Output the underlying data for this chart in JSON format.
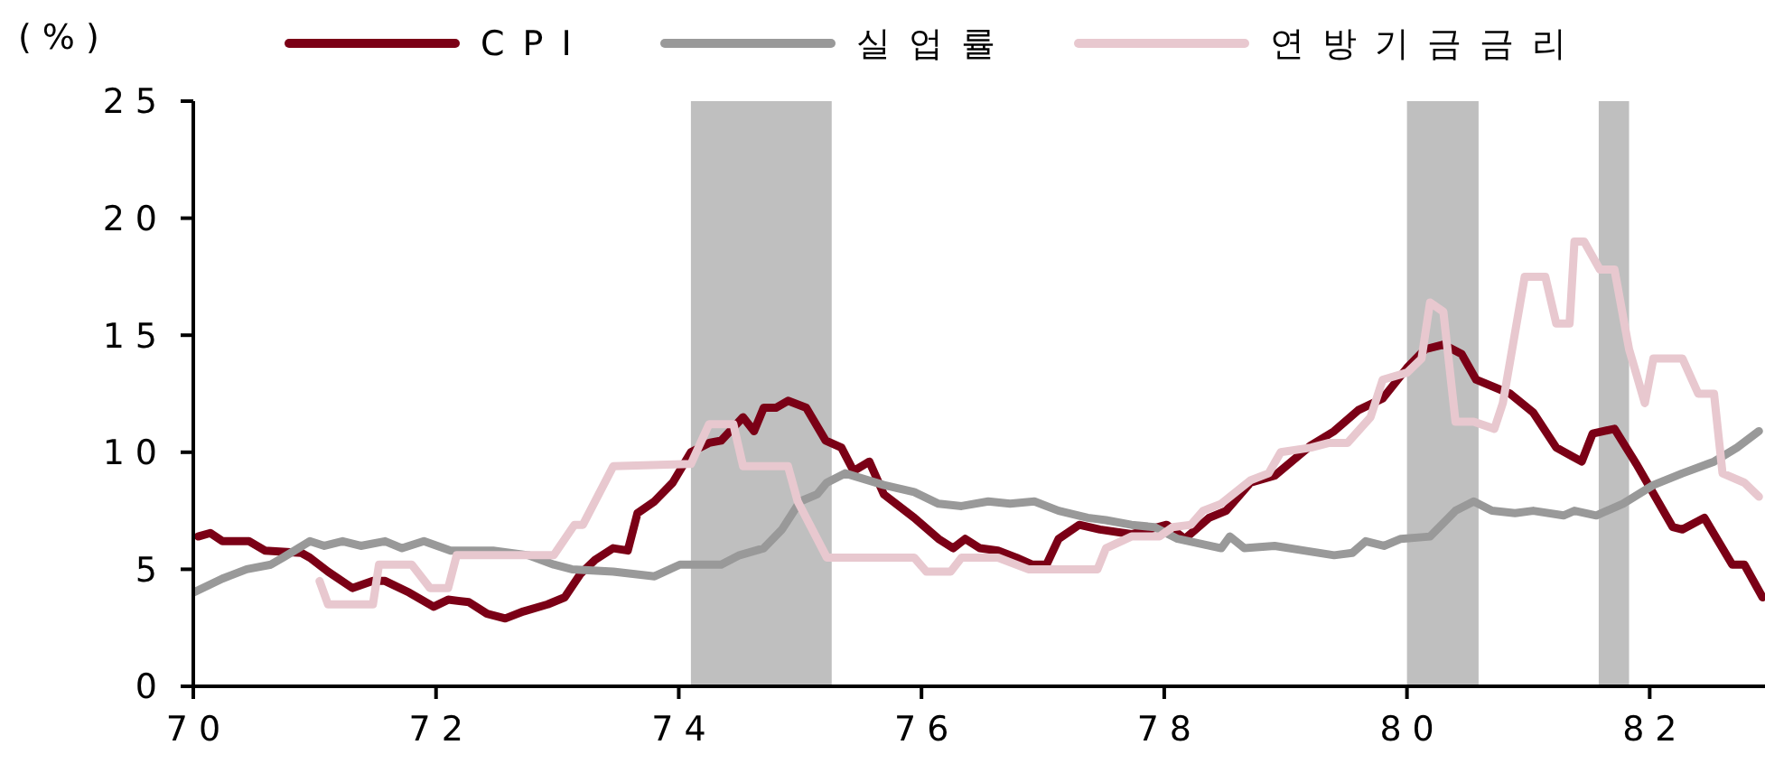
{
  "chart_data": {
    "type": "line",
    "ylabel": "(%)",
    "xlim": [
      70,
      82.95
    ],
    "xticks": [
      70,
      72,
      74,
      76,
      78,
      80,
      82
    ],
    "ylim": [
      0,
      25
    ],
    "yticks": [
      0,
      5,
      10,
      15,
      20,
      25
    ],
    "grid": false,
    "legend": "top",
    "line_style": "solid",
    "bands": [
      {
        "axis": "x",
        "from": 74.1,
        "to": 75.26,
        "color": "#bfbfbf"
      },
      {
        "axis": "x",
        "from": 80.0,
        "to": 80.59,
        "color": "#bfbfbf"
      },
      {
        "axis": "x",
        "from": 81.58,
        "to": 81.83,
        "color": "#bfbfbf"
      }
    ],
    "series": [
      {
        "name": "CPI",
        "color": "#7b0016",
        "x": [
          70.04,
          70.14,
          70.24,
          70.46,
          70.59,
          70.89,
          70.96,
          71.11,
          71.31,
          71.48,
          71.58,
          71.78,
          71.98,
          72.1,
          72.27,
          72.42,
          72.57,
          72.72,
          72.92,
          73.06,
          73.19,
          73.31,
          73.46,
          73.58,
          73.66,
          73.8,
          73.95,
          74.1,
          74.25,
          74.35,
          74.53,
          74.62,
          74.7,
          74.8,
          74.9,
          75.05,
          75.21,
          75.34,
          75.44,
          75.57,
          75.69,
          75.94,
          76.14,
          76.26,
          76.36,
          76.48,
          76.63,
          76.78,
          76.91,
          77.03,
          77.13,
          77.3,
          77.47,
          77.73,
          78.02,
          78.17,
          78.37,
          78.51,
          78.71,
          78.91,
          79.21,
          79.4,
          79.6,
          79.8,
          80.0,
          80.15,
          80.3,
          80.45,
          80.57,
          80.85,
          81.04,
          81.23,
          81.44,
          81.53,
          81.71,
          81.89,
          82.19,
          82.27,
          82.45,
          82.68,
          82.78,
          82.93
        ],
        "values": [
          6.4,
          6.55,
          6.2,
          6.2,
          5.8,
          5.7,
          5.5,
          4.9,
          4.2,
          4.5,
          4.5,
          4.0,
          3.4,
          3.7,
          3.6,
          3.1,
          2.9,
          3.2,
          3.5,
          3.8,
          4.8,
          5.4,
          5.9,
          5.8,
          7.4,
          7.9,
          8.7,
          10.0,
          10.4,
          10.5,
          11.5,
          10.9,
          11.9,
          11.9,
          12.2,
          11.9,
          10.5,
          10.2,
          9.2,
          9.6,
          8.2,
          7.2,
          6.3,
          5.9,
          6.3,
          5.9,
          5.8,
          5.5,
          5.2,
          5.2,
          6.3,
          6.9,
          6.7,
          6.5,
          6.9,
          6.3,
          7.2,
          7.5,
          8.7,
          9.0,
          10.3,
          10.9,
          11.8,
          12.3,
          13.6,
          14.4,
          14.6,
          14.2,
          13.1,
          12.5,
          11.7,
          10.2,
          9.6,
          10.8,
          11.0,
          9.5,
          6.8,
          6.7,
          7.2,
          5.2,
          5.2,
          3.8
        ]
      },
      {
        "name": "실업률",
        "color": "#999999",
        "x": [
          70.0,
          70.24,
          70.44,
          70.64,
          70.74,
          70.96,
          71.08,
          71.23,
          71.38,
          71.58,
          71.72,
          71.9,
          72.12,
          72.47,
          72.76,
          72.97,
          73.12,
          73.46,
          73.8,
          74.01,
          74.25,
          74.35,
          74.5,
          74.7,
          74.85,
          75.0,
          75.14,
          75.22,
          75.37,
          75.69,
          75.94,
          76.14,
          76.33,
          76.55,
          76.73,
          76.93,
          77.13,
          77.37,
          77.52,
          77.73,
          77.92,
          78.11,
          78.47,
          78.54,
          78.66,
          78.91,
          79.15,
          79.4,
          79.55,
          79.66,
          79.81,
          79.95,
          80.19,
          80.4,
          80.55,
          80.7,
          80.89,
          81.04,
          81.29,
          81.38,
          81.56,
          81.78,
          82.03,
          82.27,
          82.53,
          82.72,
          82.9
        ],
        "values": [
          4.0,
          4.6,
          5.0,
          5.2,
          5.5,
          6.2,
          6.0,
          6.2,
          6.0,
          6.2,
          5.9,
          6.2,
          5.8,
          5.8,
          5.6,
          5.2,
          5.0,
          4.9,
          4.7,
          5.2,
          5.2,
          5.2,
          5.6,
          5.9,
          6.7,
          7.9,
          8.2,
          8.7,
          9.1,
          8.6,
          8.3,
          7.8,
          7.7,
          7.9,
          7.8,
          7.9,
          7.5,
          7.2,
          7.1,
          6.9,
          6.8,
          6.3,
          5.9,
          6.4,
          5.9,
          6.0,
          5.8,
          5.6,
          5.7,
          6.2,
          6.0,
          6.3,
          6.4,
          7.5,
          7.9,
          7.5,
          7.4,
          7.5,
          7.3,
          7.5,
          7.3,
          7.8,
          8.6,
          9.1,
          9.6,
          10.2,
          10.9
        ]
      },
      {
        "name": "연방기금금리",
        "color": "#e8c8cf",
        "x": [
          71.04,
          71.11,
          71.48,
          71.53,
          71.8,
          71.95,
          72.1,
          72.17,
          72.97,
          73.14,
          73.21,
          73.46,
          74.1,
          74.25,
          74.45,
          74.53,
          74.9,
          74.98,
          75.22,
          75.94,
          76.04,
          76.24,
          76.33,
          76.63,
          76.88,
          77.45,
          77.52,
          77.73,
          77.96,
          78.07,
          78.22,
          78.32,
          78.47,
          78.71,
          78.86,
          78.96,
          79.21,
          79.36,
          79.51,
          79.7,
          79.8,
          80.0,
          80.12,
          80.19,
          80.3,
          80.4,
          80.55,
          80.72,
          80.79,
          80.97,
          81.14,
          81.23,
          81.34,
          81.38,
          81.46,
          81.59,
          81.71,
          81.83,
          81.96,
          82.03,
          82.27,
          82.4,
          82.53,
          82.6,
          82.78,
          82.9
        ],
        "values": [
          4.5,
          3.5,
          3.5,
          5.2,
          5.2,
          4.2,
          4.2,
          5.6,
          5.6,
          6.9,
          6.9,
          9.4,
          9.5,
          11.2,
          11.2,
          9.4,
          9.4,
          7.9,
          5.5,
          5.5,
          4.9,
          4.9,
          5.5,
          5.5,
          5.0,
          5.0,
          5.9,
          6.4,
          6.4,
          6.8,
          6.9,
          7.5,
          7.8,
          8.8,
          9.1,
          10.0,
          10.2,
          10.4,
          10.4,
          11.5,
          13.1,
          13.4,
          14.0,
          16.4,
          16.0,
          11.3,
          11.3,
          11.0,
          12.1,
          17.5,
          17.5,
          15.5,
          15.5,
          19.0,
          19.0,
          17.8,
          17.8,
          14.4,
          12.1,
          14.0,
          14.0,
          12.5,
          12.5,
          9.1,
          8.7,
          8.1
        ]
      }
    ]
  }
}
